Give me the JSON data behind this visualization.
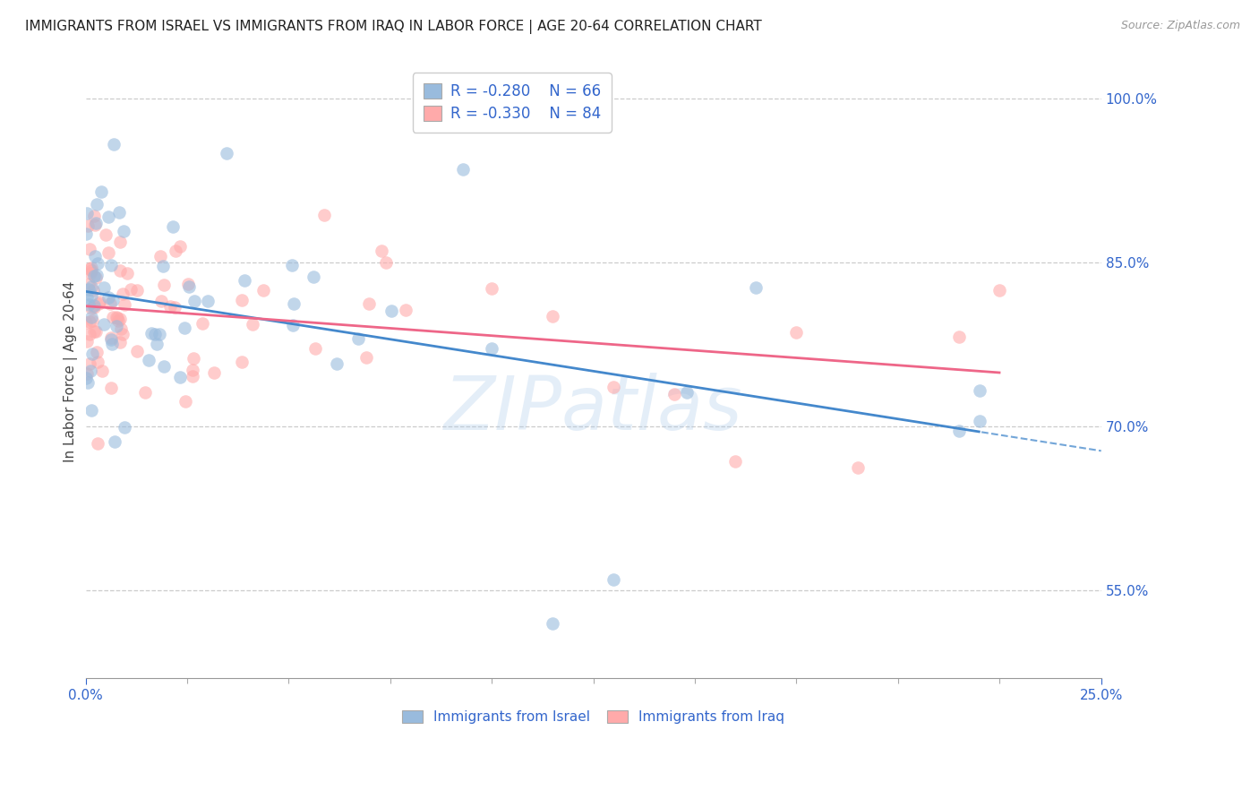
{
  "title": "IMMIGRANTS FROM ISRAEL VS IMMIGRANTS FROM IRAQ IN LABOR FORCE | AGE 20-64 CORRELATION CHART",
  "source": "Source: ZipAtlas.com",
  "ylabel": "In Labor Force | Age 20-64",
  "xlim": [
    0.0,
    0.25
  ],
  "ylim": [
    0.47,
    1.03
  ],
  "xtick_positions": [
    0.0,
    0.25
  ],
  "xtick_labels": [
    "0.0%",
    "25.0%"
  ],
  "yticks_right": [
    1.0,
    0.85,
    0.7,
    0.55
  ],
  "ytick_labels_right": [
    "100.0%",
    "85.0%",
    "70.0%",
    "55.0%"
  ],
  "grid_color": "#cccccc",
  "background_color": "#ffffff",
  "watermark": "ZIPatlas",
  "watermark_color": "#a8c8e8",
  "israel_color": "#99bbdd",
  "iraq_color": "#ffaaaa",
  "israel_line_color": "#4488cc",
  "iraq_line_color": "#ee6688",
  "israel_R": -0.28,
  "israel_N": 66,
  "iraq_R": -0.33,
  "iraq_N": 84,
  "legend_R_color": "#333333",
  "legend_val_color": "#3366cc",
  "title_fontsize": 11,
  "axis_label_fontsize": 11,
  "tick_fontsize": 11,
  "legend_fontsize": 12
}
